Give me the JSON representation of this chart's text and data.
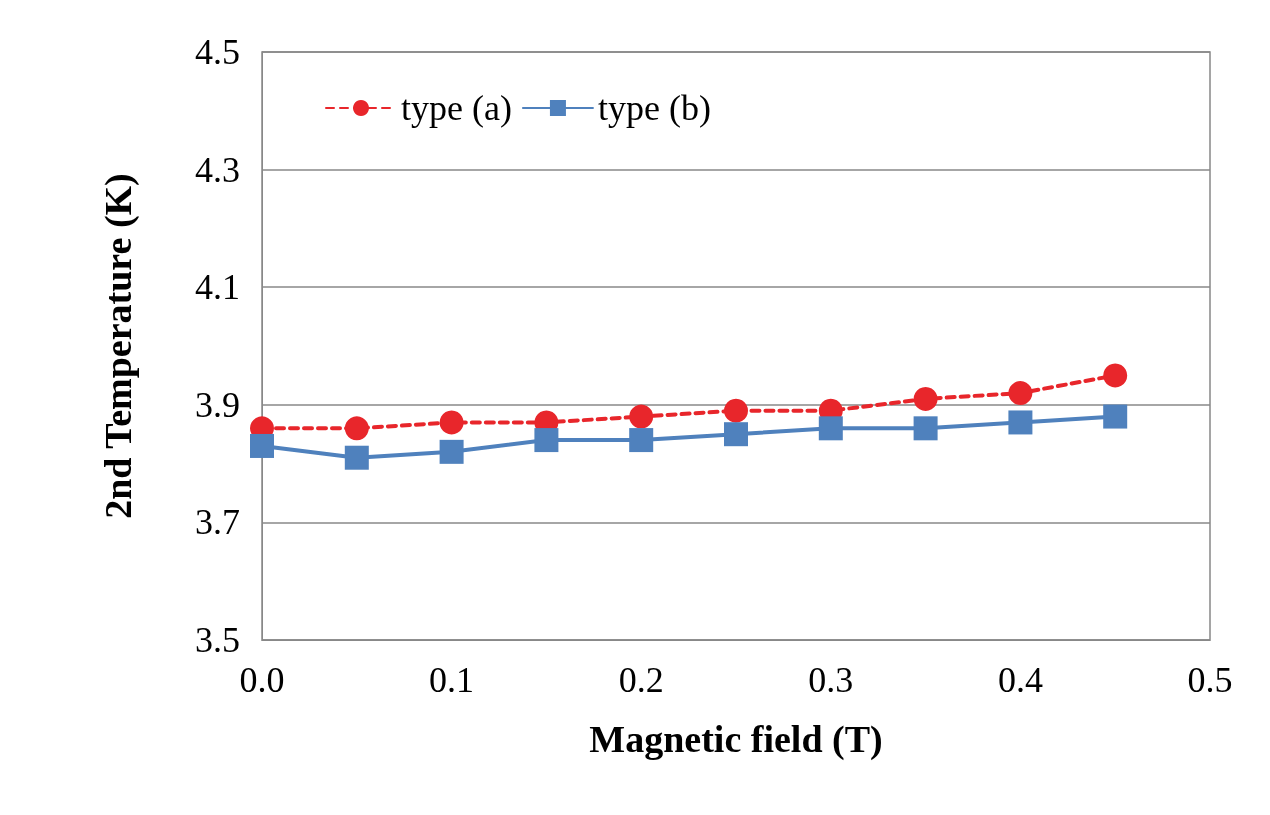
{
  "chart_data": {
    "type": "line",
    "xlabel": "Magnetic field (T)",
    "ylabel": "2nd Temperature (K)",
    "x": [
      0,
      0.05,
      0.1,
      0.15,
      0.2,
      0.25,
      0.3,
      0.35,
      0.4,
      0.45
    ],
    "series": [
      {
        "name": "type (a)",
        "color": "#e8262b",
        "marker": "circle",
        "line_style": "dashed",
        "values": [
          3.86,
          3.86,
          3.87,
          3.87,
          3.88,
          3.89,
          3.89,
          3.91,
          3.92,
          3.95
        ]
      },
      {
        "name": "type (b)",
        "color": "#4f81bd",
        "marker": "square",
        "line_style": "solid",
        "values": [
          3.83,
          3.81,
          3.82,
          3.84,
          3.84,
          3.85,
          3.86,
          3.86,
          3.87,
          3.88
        ]
      }
    ],
    "xlim": [
      0,
      0.5
    ],
    "xticks": [
      {
        "value": 0,
        "label": "0.0"
      },
      0.1,
      0.2,
      0.3,
      0.4,
      0.5
    ],
    "ylim": [
      3.5,
      4.5
    ],
    "yticks": [
      3.5,
      3.7,
      3.9,
      4.1,
      4.3,
      4.5
    ],
    "grid": "y",
    "legend": "top left"
  }
}
